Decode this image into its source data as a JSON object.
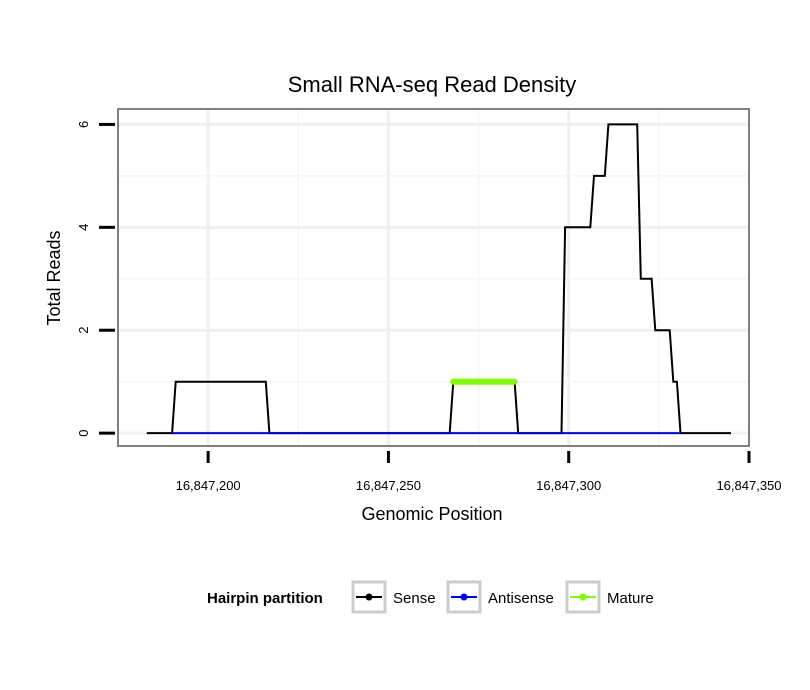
{
  "chart_data": {
    "type": "line",
    "title": "Small RNA-seq Read Density",
    "xlabel": "Genomic Position",
    "ylabel": "Total Reads",
    "xlim": [
      16847175,
      16847350
    ],
    "ylim": [
      -0.25,
      6.3
    ],
    "x_ticks": [
      16847200,
      16847250,
      16847300,
      16847350
    ],
    "x_tick_labels": [
      "16,847,200",
      "16,847,250",
      "16,847,300",
      "16,847,350"
    ],
    "y_ticks": [
      0,
      2,
      4,
      6
    ],
    "y_tick_labels": [
      "0",
      "2",
      "4",
      "6"
    ],
    "grid": true,
    "legend": {
      "title": "Hairpin partition",
      "position": "bottom"
    },
    "series": [
      {
        "name": "Sense",
        "color": "#000000",
        "points": [
          [
            16847183,
            0
          ],
          [
            16847190,
            0
          ],
          [
            16847191,
            1
          ],
          [
            16847216,
            1
          ],
          [
            16847217,
            0
          ],
          [
            16847267,
            0
          ],
          [
            16847268,
            1
          ],
          [
            16847285,
            1
          ],
          [
            16847286,
            0
          ],
          [
            16847298,
            0
          ],
          [
            16847299,
            4
          ],
          [
            16847306,
            4
          ],
          [
            16847307,
            5
          ],
          [
            16847310,
            5
          ],
          [
            16847311,
            6
          ],
          [
            16847319,
            6
          ],
          [
            16847320,
            3
          ],
          [
            16847323,
            3
          ],
          [
            16847324,
            2
          ],
          [
            16847328,
            2
          ],
          [
            16847329,
            1
          ],
          [
            16847330,
            1
          ],
          [
            16847331,
            0
          ],
          [
            16847345,
            0
          ]
        ]
      },
      {
        "name": "Antisense",
        "color": "#0000ff",
        "points": [
          [
            16847190,
            0
          ],
          [
            16847331,
            0
          ]
        ]
      },
      {
        "name": "Mature",
        "color": "#7fff00",
        "points": [
          [
            16847268,
            1
          ],
          [
            16847285,
            1
          ]
        ]
      }
    ]
  }
}
